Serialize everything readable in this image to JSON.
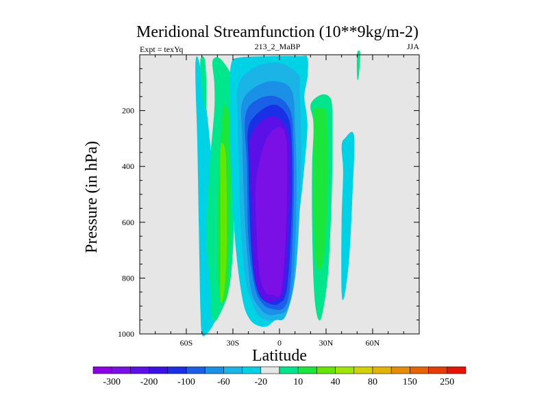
{
  "chart_data": {
    "type": "contour",
    "title": "Meridional Streamfunction (10**9kg/m-2)",
    "left_subtitle": "Expt = texYq",
    "center_subtitle": "213_2_MaBP",
    "right_subtitle": "JJA",
    "xlabel": "Latitude",
    "ylabel": "Pressure (in hPa)",
    "xlim": [
      -90,
      90
    ],
    "ylim": [
      1000,
      0
    ],
    "x_ticks": [
      {
        "value": -60,
        "label": "60S"
      },
      {
        "value": -30,
        "label": "30S"
      },
      {
        "value": 0,
        "label": "0"
      },
      {
        "value": 30,
        "label": "30N"
      },
      {
        "value": 60,
        "label": "60N"
      }
    ],
    "y_ticks": [
      {
        "value": 200,
        "label": "200"
      },
      {
        "value": 400,
        "label": "400"
      },
      {
        "value": 600,
        "label": "600"
      },
      {
        "value": 800,
        "label": "800"
      },
      {
        "value": 1000,
        "label": "1000"
      }
    ],
    "background_color": "#e6e6e6",
    "colorbar": {
      "colors": [
        "#8b00e6",
        "#7a10e6",
        "#5a10e6",
        "#3a10e6",
        "#1a30e6",
        "#1a60e6",
        "#1a90e6",
        "#1ab4e6",
        "#00d2e6",
        "#e6e6e6",
        "#00e68c",
        "#1ae63c",
        "#64e600",
        "#a0e600",
        "#d2d200",
        "#e6b400",
        "#e68c00",
        "#e66400",
        "#e63c00",
        "#e61400"
      ],
      "labels": [
        {
          "after_index": 0,
          "label": "-300"
        },
        {
          "after_index": 2,
          "label": "-200"
        },
        {
          "after_index": 4,
          "label": "-100"
        },
        {
          "after_index": 6,
          "label": "-60"
        },
        {
          "after_index": 8,
          "label": "-20"
        },
        {
          "after_index": 10,
          "label": "10"
        },
        {
          "after_index": 12,
          "label": "40"
        },
        {
          "after_index": 14,
          "label": "80"
        },
        {
          "after_index": 16,
          "label": "150"
        },
        {
          "after_index": 18,
          "label": "250"
        }
      ]
    },
    "contour_regions": [
      {
        "name": "sh-outer-flank",
        "color": "#00d2e6",
        "lat": [
          -50,
          -47,
          -44,
          -42,
          -40,
          -39,
          -40,
          -42,
          -45,
          -48,
          -52,
          -54,
          -54,
          -53,
          -52,
          -51
        ],
        "p": [
          1000,
          1000,
          980,
          960,
          940,
          900,
          700,
          500,
          300,
          150,
          20,
          20,
          120,
          300,
          600,
          900
        ]
      },
      {
        "name": "sh-ferrel-upper-streak",
        "color": "#00e68c",
        "lat": [
          -51,
          -48,
          -47,
          -48,
          -50
        ],
        "p": [
          20,
          20,
          150,
          200,
          120
        ]
      },
      {
        "name": "sh-ferrel-outer",
        "color": "#00e68c",
        "lat": [
          -43,
          -37,
          -28,
          -27,
          -29,
          -30,
          -33,
          -40,
          -43,
          -44,
          -45,
          -47,
          -45,
          -42,
          -42
        ],
        "p": [
          20,
          20,
          120,
          300,
          500,
          700,
          850,
          945,
          948,
          925,
          800,
          650,
          400,
          200,
          100
        ]
      },
      {
        "name": "sh-ferrel-mid",
        "color": "#1ae63c",
        "lat": [
          -36,
          -32,
          -31,
          -32,
          -33,
          -34,
          -36,
          -39,
          -40,
          -39,
          -37,
          -36
        ],
        "p": [
          180,
          220,
          400,
          600,
          800,
          870,
          880,
          850,
          650,
          400,
          230,
          180
        ]
      },
      {
        "name": "sh-ferrel-core",
        "color": "#64e600",
        "lat": [
          -38,
          -35,
          -34,
          -34,
          -36,
          -38,
          -38,
          -38
        ],
        "p": [
          330,
          340,
          480,
          720,
          860,
          880,
          720,
          500
        ]
      },
      {
        "name": "hadley-minus-20",
        "color": "#00d2e6",
        "lat": [
          -31,
          -26,
          -6,
          13,
          18,
          18,
          16,
          18,
          16,
          12,
          4,
          -6,
          -14,
          -20,
          -24,
          -28,
          -31,
          -32,
          -32
        ],
        "p": [
          30,
          10,
          5,
          5,
          10,
          80,
          150,
          250,
          400,
          600,
          880,
          965,
          970,
          940,
          870,
          700,
          450,
          250,
          120
        ]
      },
      {
        "name": "hadley-minus-40",
        "color": "#1ab4e6",
        "lat": [
          -26,
          -14,
          0,
          12,
          13,
          14,
          13,
          10,
          4,
          -2,
          -8,
          -14,
          -18,
          -22,
          -25,
          -26,
          -27
        ],
        "p": [
          100,
          40,
          30,
          70,
          140,
          300,
          550,
          800,
          935,
          950,
          950,
          930,
          880,
          800,
          600,
          400,
          220
        ]
      },
      {
        "name": "hadley-minus-60",
        "color": "#1a90e6",
        "lat": [
          -24,
          -14,
          -2,
          8,
          10,
          11,
          9,
          5,
          -2,
          -8,
          -13,
          -18,
          -21,
          -23,
          -24
        ],
        "p": [
          170,
          110,
          95,
          130,
          260,
          500,
          800,
          910,
          930,
          930,
          905,
          850,
          700,
          500,
          300
        ]
      },
      {
        "name": "hadley-minus-80",
        "color": "#1a60e6",
        "lat": [
          -22,
          -14,
          -2,
          7,
          9,
          9,
          7,
          3,
          -5,
          -11,
          -16,
          -20,
          -21
        ],
        "p": [
          220,
          160,
          150,
          200,
          320,
          560,
          820,
          905,
          910,
          890,
          830,
          660,
          400
        ]
      },
      {
        "name": "hadley-minus-100",
        "color": "#1a30e6",
        "lat": [
          -20,
          -12,
          -2,
          6,
          8,
          8,
          5,
          0,
          -7,
          -13,
          -17,
          -19,
          -20
        ],
        "p": [
          260,
          200,
          180,
          230,
          340,
          560,
          830,
          890,
          890,
          860,
          770,
          600,
          380
        ]
      },
      {
        "name": "hadley-minus-150",
        "color": "#5a10e6",
        "lat": [
          -19,
          -12,
          -3,
          5,
          7,
          6,
          3,
          -3,
          -9,
          -14,
          -17,
          -18,
          -19
        ],
        "p": [
          300,
          240,
          220,
          270,
          380,
          600,
          840,
          880,
          880,
          840,
          740,
          550,
          400
        ]
      },
      {
        "name": "hadley-core",
        "color": "#7a10e6",
        "lat": [
          -15,
          -9,
          -1,
          4,
          5,
          4,
          1,
          -4,
          -9,
          -13,
          -15
        ],
        "p": [
          450,
          310,
          260,
          290,
          420,
          650,
          850,
          860,
          850,
          780,
          600
        ]
      },
      {
        "name": "nh-ferrel-outer",
        "color": "#00e68c",
        "lat": [
          20,
          26,
          32,
          34,
          34,
          33,
          31,
          27,
          24,
          22,
          21,
          21,
          22
        ],
        "p": [
          180,
          145,
          150,
          200,
          400,
          600,
          800,
          940,
          930,
          820,
          600,
          400,
          250
        ]
      },
      {
        "name": "nh-ferrel-core",
        "color": "#1ae63c",
        "lat": [
          22,
          25,
          30,
          31,
          31,
          29,
          26,
          23,
          22,
          22
        ],
        "p": [
          200,
          190,
          200,
          280,
          500,
          700,
          770,
          720,
          500,
          300
        ]
      },
      {
        "name": "nh-polar-cell",
        "color": "#00d2e6",
        "lat": [
          40,
          42,
          48,
          47,
          45,
          42,
          40,
          40,
          41
        ],
        "p": [
          330,
          300,
          290,
          500,
          720,
          860,
          850,
          600,
          420
        ]
      },
      {
        "name": "nh-upper-streak",
        "color": "#00e68c",
        "lat": [
          50,
          52,
          51,
          50
        ],
        "p": [
          -5,
          -5,
          80,
          80
        ]
      }
    ]
  }
}
